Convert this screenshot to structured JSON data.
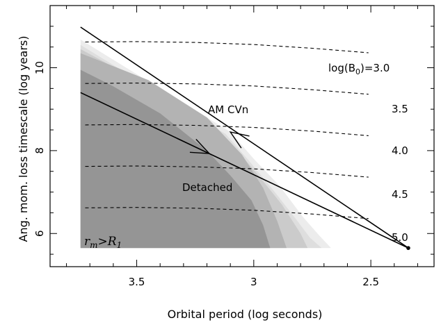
{
  "chart_data": {
    "type": "line",
    "title": "",
    "xlabel": "Orbital period (log seconds)",
    "ylabel": "Ang. mom. loss timescale (log years)",
    "xlim": [
      3.87,
      2.23
    ],
    "ylim": [
      5.2,
      11.5
    ],
    "x_ticks": [
      3.5,
      3.0,
      2.5
    ],
    "x_tick_labels": [
      "3.5",
      "3",
      "2.5"
    ],
    "y_ticks": [
      6,
      8,
      10
    ],
    "y_tick_labels": [
      "6",
      "8",
      "10"
    ],
    "x_minor_step": 0.1,
    "y_minor_step": 0.5,
    "grid": false,
    "legend": "none",
    "shaded_regions": [
      {
        "color": "#ececec",
        "points": [
          [
            3.74,
            5.65
          ],
          [
            3.74,
            10.68
          ],
          [
            3.1,
            8.45
          ],
          [
            3.0,
            7.8
          ],
          [
            2.89,
            7.15
          ],
          [
            2.79,
            6.4
          ],
          [
            2.72,
            5.95
          ],
          [
            2.67,
            5.65
          ]
        ]
      },
      {
        "color": "#dedede",
        "points": [
          [
            3.74,
            5.65
          ],
          [
            3.74,
            10.55
          ],
          [
            3.12,
            8.4
          ],
          [
            3.02,
            7.75
          ],
          [
            2.91,
            7.0
          ],
          [
            2.82,
            6.35
          ],
          [
            2.76,
            5.9
          ],
          [
            2.71,
            5.65
          ]
        ]
      },
      {
        "color": "#cbcbcb",
        "points": [
          [
            3.74,
            5.65
          ],
          [
            3.74,
            10.45
          ],
          [
            3.3,
            9.1
          ],
          [
            3.1,
            8.2
          ],
          [
            2.98,
            7.4
          ],
          [
            2.88,
            6.7
          ],
          [
            2.8,
            6.0
          ],
          [
            2.77,
            5.65
          ]
        ]
      },
      {
        "color": "#b3b3b3",
        "points": [
          [
            3.74,
            5.65
          ],
          [
            3.74,
            10.35
          ],
          [
            3.45,
            9.7
          ],
          [
            3.2,
            8.8
          ],
          [
            3.05,
            7.9
          ],
          [
            2.96,
            7.1
          ],
          [
            2.9,
            6.3
          ],
          [
            2.86,
            5.65
          ]
        ]
      },
      {
        "color": "#959595",
        "points": [
          [
            3.74,
            5.65
          ],
          [
            3.74,
            9.95
          ],
          [
            3.6,
            9.55
          ],
          [
            3.4,
            8.9
          ],
          [
            3.2,
            8.0
          ],
          [
            3.1,
            7.4
          ],
          [
            3.01,
            6.8
          ],
          [
            2.96,
            6.2
          ],
          [
            2.93,
            5.65
          ]
        ]
      }
    ],
    "series": [
      {
        "type": "solid",
        "points": [
          [
            3.74,
            10.98
          ],
          [
            2.34,
            5.65
          ]
        ]
      },
      {
        "type": "solid",
        "points": [
          [
            3.74,
            9.4
          ],
          [
            2.34,
            5.65
          ]
        ]
      },
      {
        "type": "dashed",
        "label": "log(B₀)=3.0",
        "points": [
          [
            3.72,
            10.62
          ],
          [
            3.5,
            10.63
          ],
          [
            3.25,
            10.61
          ],
          [
            3.0,
            10.56
          ],
          [
            2.75,
            10.47
          ],
          [
            2.51,
            10.36
          ]
        ]
      },
      {
        "type": "dashed",
        "label": "3.5",
        "points": [
          [
            3.72,
            9.62
          ],
          [
            3.5,
            9.63
          ],
          [
            3.25,
            9.61
          ],
          [
            3.0,
            9.56
          ],
          [
            2.75,
            9.47
          ],
          [
            2.51,
            9.36
          ]
        ]
      },
      {
        "type": "dashed",
        "label": "4.0",
        "points": [
          [
            3.72,
            8.62
          ],
          [
            3.5,
            8.63
          ],
          [
            3.25,
            8.61
          ],
          [
            3.0,
            8.56
          ],
          [
            2.75,
            8.47
          ],
          [
            2.51,
            8.36
          ]
        ]
      },
      {
        "type": "dashed",
        "label": "4.5",
        "points": [
          [
            3.72,
            7.62
          ],
          [
            3.5,
            7.63
          ],
          [
            3.25,
            7.61
          ],
          [
            3.0,
            7.56
          ],
          [
            2.75,
            7.47
          ],
          [
            2.51,
            7.36
          ]
        ]
      },
      {
        "type": "dashed",
        "label": "5.0",
        "points": [
          [
            3.72,
            6.62
          ],
          [
            3.5,
            6.63
          ],
          [
            3.25,
            6.61
          ],
          [
            3.0,
            6.56
          ],
          [
            2.75,
            6.47
          ],
          [
            2.51,
            6.36
          ]
        ]
      }
    ],
    "end_point": [
      2.34,
      5.65
    ],
    "arrows": [
      {
        "label": "AM CVn",
        "at": [
          3.1,
          8.45
        ],
        "direction": "up-left"
      },
      {
        "label": "Detached",
        "at": [
          3.19,
          7.93
        ],
        "direction": "down-right"
      }
    ],
    "annotations": {
      "am_cvn": "AM CVn",
      "detached": "Detached",
      "b0_prefix": "log(B",
      "b0_sub": "0",
      "b0_suffix": ")=3.0",
      "rm_main": "r",
      "rm_sub": "m",
      "rm_gt": ">",
      "rm_R": "R",
      "rm_R_sub": "1"
    }
  }
}
